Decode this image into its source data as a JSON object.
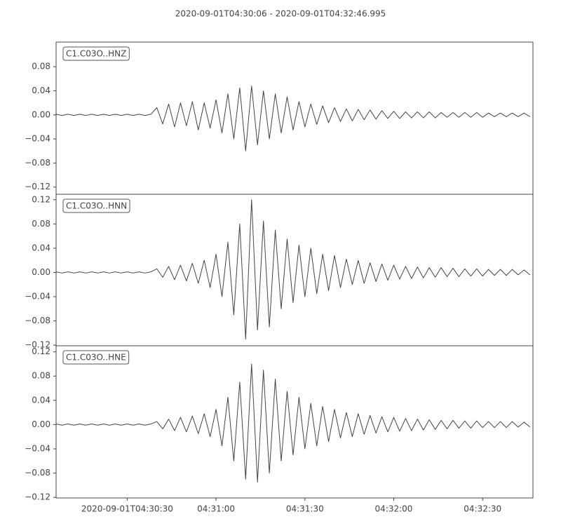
{
  "title": "2020-09-01T04:30:06  -  2020-09-01T04:32:46.995",
  "chart_data": [
    {
      "type": "line",
      "xlim": [
        0,
        160.995
      ],
      "ylim": [
        -0.132,
        0.121
      ],
      "yticks": [
        {
          "value": -0.12,
          "label": "−0.12"
        },
        {
          "value": -0.08,
          "label": "−0.08"
        },
        {
          "value": -0.04,
          "label": "−0.04"
        },
        {
          "value": 0,
          "label": "0.00"
        },
        0.04,
        0.08
      ],
      "x": [
        0,
        2,
        4,
        6,
        8,
        10,
        12,
        14,
        16,
        18,
        20,
        22,
        24,
        26,
        28,
        30,
        32,
        34,
        36,
        38,
        40,
        42,
        44,
        46,
        48,
        50,
        52,
        54,
        56,
        58,
        60,
        62,
        64,
        66,
        68,
        70,
        72,
        74,
        76,
        78,
        80,
        82,
        84,
        86,
        88,
        90,
        92,
        94,
        96,
        98,
        100,
        102,
        104,
        106,
        108,
        110,
        112,
        114,
        116,
        118,
        120,
        122,
        124,
        126,
        128,
        130,
        132,
        134,
        136,
        138,
        140,
        142,
        144,
        146,
        148,
        150,
        152,
        154,
        156,
        158,
        160
      ],
      "series": [
        {
          "name": "C1.C03O..HNZ",
          "color": "#444444",
          "values": [
            0.001,
            -0.001,
            0.001,
            -0.001,
            0.001,
            -0.001,
            0.001,
            -0.001,
            0.001,
            -0.001,
            0.001,
            -0.001,
            0.001,
            -0.001,
            0.001,
            -0.001,
            0.001,
            0.012,
            -0.015,
            0.018,
            -0.02,
            0.02,
            -0.018,
            0.022,
            -0.025,
            0.02,
            -0.022,
            0.025,
            -0.03,
            0.035,
            -0.04,
            0.045,
            -0.06,
            0.048,
            -0.05,
            0.04,
            -0.04,
            0.035,
            -0.03,
            0.03,
            -0.025,
            0.022,
            -0.02,
            0.018,
            -0.016,
            0.015,
            -0.013,
            0.012,
            -0.011,
            0.01,
            -0.01,
            0.009,
            -0.008,
            0.008,
            -0.007,
            0.007,
            -0.006,
            0.006,
            -0.006,
            0.005,
            -0.005,
            0.005,
            -0.005,
            0.005,
            -0.005,
            0.004,
            -0.004,
            0.004,
            -0.004,
            0.004,
            -0.004,
            0.004,
            -0.004,
            0.003,
            -0.003,
            0.003,
            -0.003,
            0.003,
            -0.003,
            0.003,
            -0.003
          ]
        }
      ]
    },
    {
      "type": "line",
      "xlim": [
        0,
        160.995
      ],
      "ylim": [
        -0.121,
        0.129
      ],
      "yticks": [
        {
          "value": -0.12,
          "label": "−0.12"
        },
        {
          "value": -0.08,
          "label": "−0.08"
        },
        {
          "value": -0.04,
          "label": "−0.04"
        },
        {
          "value": 0,
          "label": "0.00"
        },
        0.04,
        0.08,
        0.12
      ],
      "x": [
        0,
        2,
        4,
        6,
        8,
        10,
        12,
        14,
        16,
        18,
        20,
        22,
        24,
        26,
        28,
        30,
        32,
        34,
        36,
        38,
        40,
        42,
        44,
        46,
        48,
        50,
        52,
        54,
        56,
        58,
        60,
        62,
        64,
        66,
        68,
        70,
        72,
        74,
        76,
        78,
        80,
        82,
        84,
        86,
        88,
        90,
        92,
        94,
        96,
        98,
        100,
        102,
        104,
        106,
        108,
        110,
        112,
        114,
        116,
        118,
        120,
        122,
        124,
        126,
        128,
        130,
        132,
        134,
        136,
        138,
        140,
        142,
        144,
        146,
        148,
        150,
        152,
        154,
        156,
        158,
        160
      ],
      "series": [
        {
          "name": "C1.C03O..HNN",
          "color": "#444444",
          "values": [
            0.001,
            -0.001,
            0.001,
            -0.001,
            0.001,
            -0.001,
            0.001,
            -0.001,
            0.001,
            -0.001,
            0.001,
            -0.001,
            0.001,
            -0.001,
            0.001,
            -0.001,
            0.001,
            0.006,
            -0.008,
            0.01,
            -0.012,
            0.012,
            -0.014,
            0.015,
            -0.018,
            0.02,
            -0.025,
            0.03,
            -0.04,
            0.05,
            -0.07,
            0.08,
            -0.11,
            0.12,
            -0.095,
            0.085,
            -0.09,
            0.07,
            -0.06,
            0.055,
            -0.05,
            0.045,
            -0.04,
            0.04,
            -0.035,
            0.03,
            -0.03,
            0.028,
            -0.025,
            0.022,
            -0.02,
            0.02,
            -0.018,
            0.016,
            -0.015,
            0.014,
            -0.013,
            0.012,
            -0.011,
            0.01,
            -0.01,
            0.009,
            -0.009,
            0.008,
            -0.008,
            0.008,
            -0.007,
            0.007,
            -0.007,
            0.006,
            -0.006,
            0.006,
            -0.006,
            0.005,
            -0.005,
            0.005,
            -0.005,
            0.005,
            -0.004,
            0.004,
            -0.004
          ]
        }
      ]
    },
    {
      "type": "line",
      "xlim": [
        0,
        160.995
      ],
      "ylim": [
        -0.121,
        0.13
      ],
      "yticks": [
        {
          "value": -0.12,
          "label": "−0.12"
        },
        {
          "value": -0.08,
          "label": "−0.08"
        },
        {
          "value": -0.04,
          "label": "−0.04"
        },
        {
          "value": 0,
          "label": "0.00"
        },
        0.04,
        0.08,
        0.12
      ],
      "xticks": [
        {
          "value": 24,
          "label": "2020-09-01T04:30:30"
        },
        {
          "value": 54,
          "label": "04:31:00"
        },
        {
          "value": 84,
          "label": "04:31:30"
        },
        {
          "value": 114,
          "label": "04:32:00"
        },
        {
          "value": 144,
          "label": "04:32:30"
        }
      ],
      "x": [
        0,
        2,
        4,
        6,
        8,
        10,
        12,
        14,
        16,
        18,
        20,
        22,
        24,
        26,
        28,
        30,
        32,
        34,
        36,
        38,
        40,
        42,
        44,
        46,
        48,
        50,
        52,
        54,
        56,
        58,
        60,
        62,
        64,
        66,
        68,
        70,
        72,
        74,
        76,
        78,
        80,
        82,
        84,
        86,
        88,
        90,
        92,
        94,
        96,
        98,
        100,
        102,
        104,
        106,
        108,
        110,
        112,
        114,
        116,
        118,
        120,
        122,
        124,
        126,
        128,
        130,
        132,
        134,
        136,
        138,
        140,
        142,
        144,
        146,
        148,
        150,
        152,
        154,
        156,
        158,
        160
      ],
      "series": [
        {
          "name": "C1.C03O..HNE",
          "color": "#444444",
          "values": [
            0.001,
            -0.001,
            0.001,
            -0.001,
            0.001,
            -0.001,
            0.001,
            -0.001,
            0.001,
            -0.001,
            0.001,
            -0.001,
            0.001,
            -0.001,
            0.001,
            -0.001,
            0.001,
            0.005,
            -0.007,
            0.009,
            -0.01,
            0.012,
            -0.012,
            0.014,
            -0.015,
            0.018,
            -0.02,
            0.025,
            -0.035,
            0.045,
            -0.06,
            0.07,
            -0.09,
            0.1,
            -0.095,
            0.09,
            -0.08,
            0.075,
            -0.06,
            0.055,
            -0.05,
            0.045,
            -0.04,
            0.035,
            -0.035,
            0.03,
            -0.028,
            0.025,
            -0.022,
            0.02,
            -0.02,
            0.018,
            -0.016,
            0.015,
            -0.014,
            0.013,
            -0.012,
            0.012,
            -0.011,
            0.01,
            -0.01,
            0.009,
            -0.009,
            0.008,
            -0.008,
            0.007,
            -0.007,
            0.007,
            -0.006,
            0.006,
            -0.006,
            0.006,
            -0.005,
            0.005,
            -0.005,
            0.005,
            -0.005,
            0.005,
            -0.004,
            0.004,
            -0.004
          ]
        }
      ]
    }
  ]
}
